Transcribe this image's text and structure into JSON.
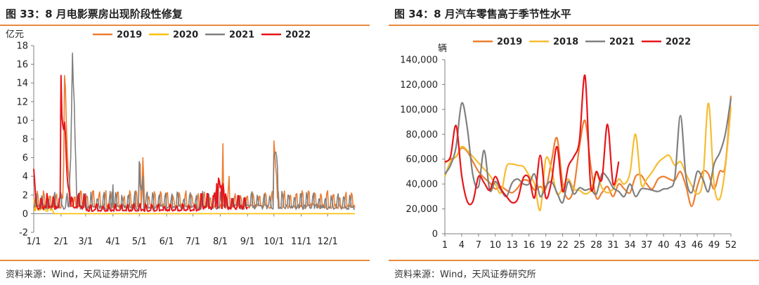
{
  "panels": {
    "left": {
      "title": "图 33：8 月电影票房出现阶段性修复",
      "source": "资料来源：Wind，天风证券研究所"
    },
    "right": {
      "title": "图 34：8 月汽车零售高于季节性水平",
      "source": "资料来源：Wind，天风证券研究所"
    }
  },
  "chart_data": [
    {
      "type": "line",
      "unit_label": "亿元",
      "ylim": [
        -2,
        18
      ],
      "yticks": [
        "-2",
        "0",
        "2",
        "4",
        "6",
        "8",
        "10",
        "12",
        "14",
        "16",
        "18"
      ],
      "x_domain": [
        1,
        366
      ],
      "xticks": [
        {
          "label": "1/1",
          "day": 1
        },
        {
          "label": "2/1",
          "day": 32
        },
        {
          "label": "3/1",
          "day": 60
        },
        {
          "label": "4/1",
          "day": 91
        },
        {
          "label": "5/1",
          "day": 121
        },
        {
          "label": "6/1",
          "day": 152
        },
        {
          "label": "7/1",
          "day": 182
        },
        {
          "label": "8/1",
          "day": 213
        },
        {
          "label": "9/1",
          "day": 244
        },
        {
          "label": "10/1",
          "day": 274
        },
        {
          "label": "11/1",
          "day": 305
        },
        {
          "label": "12/1",
          "day": 335
        }
      ],
      "legend_position": "top",
      "grid": false,
      "series": [
        {
          "name": "2019",
          "color": "#ed7d31",
          "pattern": "strong",
          "events": [
            [
              35,
              5.2
            ],
            [
              36,
              14.8
            ],
            [
              37,
              13.5
            ],
            [
              38,
              10
            ],
            [
              39,
              7
            ],
            [
              40,
              5
            ],
            [
              41,
              4
            ],
            [
              42,
              3
            ],
            [
              121,
              5.5
            ],
            [
              122,
              5.3
            ],
            [
              125,
              6.0
            ],
            [
              126,
              3.8
            ],
            [
              216,
              7.5
            ],
            [
              223,
              4
            ],
            [
              274,
              7.8
            ],
            [
              275,
              6.3
            ],
            [
              276,
              5
            ],
            [
              277,
              4
            ]
          ]
        },
        {
          "name": "2020",
          "color": "#ffc000",
          "pattern": "zero",
          "events": [
            [
              1,
              1.6
            ],
            [
              5,
              1.1
            ],
            [
              12,
              1.0
            ],
            [
              19,
              0.9
            ],
            [
              23,
              0.3
            ]
          ]
        },
        {
          "name": "2021",
          "color": "#7f7f7f",
          "pattern": "gray",
          "events": [
            [
              42,
              4
            ],
            [
              43,
              6
            ],
            [
              44,
              11
            ],
            [
              45,
              17.2
            ],
            [
              46,
              14
            ],
            [
              47,
              12
            ],
            [
              48,
              8
            ],
            [
              49,
              5
            ],
            [
              91,
              3.1
            ],
            [
              121,
              5.6
            ],
            [
              122,
              3
            ],
            [
              123,
              2.5
            ],
            [
              124,
              3
            ],
            [
              125,
              4
            ],
            [
              274,
              6.3
            ],
            [
              275,
              6.5
            ],
            [
              276,
              6.6
            ],
            [
              277,
              6.2
            ],
            [
              278,
              5
            ]
          ]
        },
        {
          "name": "2022",
          "color": "#e8151b",
          "pattern": "red",
          "events": [
            [
              1,
              4.8
            ],
            [
              2,
              3.5
            ],
            [
              3,
              2
            ],
            [
              32,
              14.8
            ],
            [
              33,
              10.5
            ],
            [
              34,
              9.5
            ],
            [
              35,
              9
            ],
            [
              36,
              9.8
            ],
            [
              37,
              8.5
            ],
            [
              38,
              6
            ],
            [
              39,
              4
            ],
            [
              40,
              3
            ],
            [
              41,
              2.5
            ],
            [
              42,
              2
            ],
            [
              207,
              2.2
            ],
            [
              209,
              3.2
            ],
            [
              211,
              3.8
            ],
            [
              212,
              3.5
            ],
            [
              213,
              2.8
            ],
            [
              214,
              3
            ],
            [
              216,
              3.2
            ],
            [
              217,
              2.5
            ]
          ]
        }
      ]
    },
    {
      "type": "line",
      "unit_label": "辆",
      "ylim": [
        0,
        140000
      ],
      "yticks": [
        "0",
        "20,000",
        "40,000",
        "60,000",
        "80,000",
        "100,000",
        "120,000",
        "140,000"
      ],
      "xticks": [
        "1",
        "4",
        "7",
        "10",
        "13",
        "16",
        "19",
        "22",
        "25",
        "28",
        "31",
        "34",
        "37",
        "40",
        "43",
        "46",
        "49",
        "52"
      ],
      "x": [
        1,
        2,
        3,
        4,
        5,
        6,
        7,
        8,
        9,
        10,
        11,
        12,
        13,
        14,
        15,
        16,
        17,
        18,
        19,
        20,
        21,
        22,
        23,
        24,
        25,
        26,
        27,
        28,
        29,
        30,
        31,
        32,
        33,
        34,
        35,
        36,
        37,
        38,
        39,
        40,
        41,
        42,
        43,
        44,
        45,
        46,
        47,
        48,
        49,
        50,
        51,
        52
      ],
      "legend_position": "top",
      "grid": false,
      "series": [
        {
          "name": "2019",
          "color": "#ed7d31",
          "values": [
            57000,
            60000,
            62000,
            69000,
            66000,
            58000,
            50000,
            45000,
            41000,
            36000,
            38000,
            35000,
            33000,
            37000,
            43000,
            42000,
            35000,
            38000,
            36000,
            58000,
            77000,
            40000,
            28000,
            37000,
            70000,
            91000,
            55000,
            29000,
            33000,
            38000,
            30000,
            40000,
            36000,
            33000,
            46000,
            47000,
            40000,
            36000,
            44000,
            46000,
            44000,
            43000,
            50000,
            38000,
            22000,
            38000,
            50000,
            48000,
            36000,
            50000,
            55000,
            111000
          ]
        },
        {
          "name": "2018",
          "color": "#f5bd32",
          "values": [
            46000,
            58000,
            62000,
            70000,
            67000,
            62000,
            57000,
            52000,
            47000,
            40000,
            33000,
            54000,
            56000,
            55000,
            54000,
            47000,
            40000,
            19000,
            60000,
            52000,
            32000,
            37000,
            44000,
            36000,
            35000,
            32000,
            35000,
            48000,
            37000,
            33000,
            36000,
            44000,
            40000,
            49000,
            80000,
            40000,
            44000,
            50000,
            57000,
            61000,
            63000,
            55000,
            58000,
            48000,
            39000,
            32000,
            43000,
            105000,
            40000,
            28000,
            53000,
            102000
          ]
        },
        {
          "name": "2021",
          "color": "#808080",
          "values": [
            48000,
            55000,
            70000,
            105000,
            85000,
            47000,
            38000,
            67000,
            35000,
            42000,
            35000,
            30000,
            41000,
            44000,
            40000,
            40000,
            48000,
            30000,
            38000,
            42000,
            33000,
            25000,
            42000,
            32000,
            37000,
            35000,
            36000,
            32000,
            48000,
            45000,
            37000,
            34000,
            30000,
            40000,
            30000,
            36000,
            36000,
            35000,
            34000,
            36000,
            37000,
            45000,
            95000,
            45000,
            33000,
            50000,
            44000,
            34000,
            56000,
            65000,
            80000,
            109000
          ]
        },
        {
          "name": "2022",
          "color": "#e8151b",
          "values": [
            58000,
            62000,
            87000,
            47000,
            26000,
            26000,
            46000,
            41000,
            35000,
            46000,
            36000,
            30000,
            25000,
            28000,
            45000,
            45000,
            29000,
            63000,
            29000,
            42000,
            70000,
            34000,
            54000,
            62000,
            75000,
            127000,
            38000,
            50000,
            44000,
            88000,
            40000,
            58000,
            null,
            null,
            null,
            null,
            null,
            null,
            null,
            null,
            null,
            null,
            null,
            null,
            null,
            null,
            null,
            null,
            null,
            null,
            null,
            null
          ]
        }
      ]
    }
  ]
}
